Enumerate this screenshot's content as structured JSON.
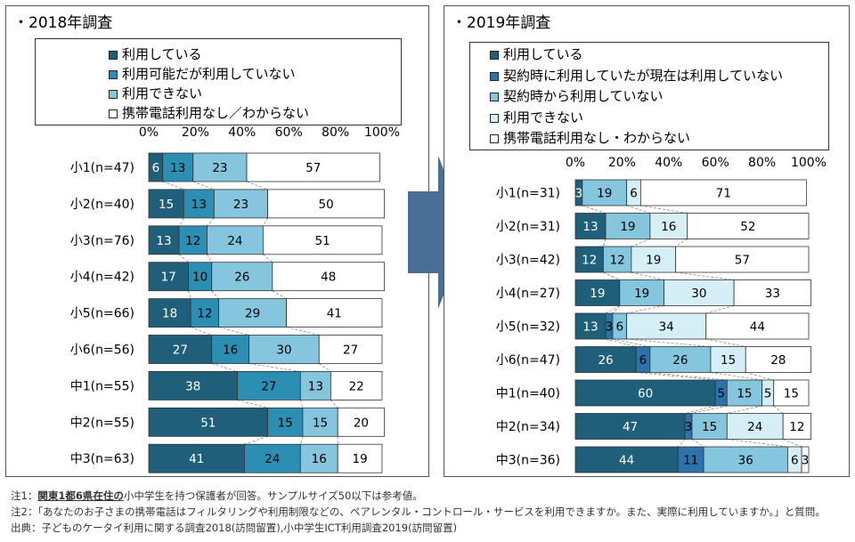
{
  "left": {
    "title": "・2018年調査",
    "legend": [
      {
        "label": "利用している",
        "color": "#1f5f7a"
      },
      {
        "label": "利用可能だが利用していない",
        "color": "#2d8eb3"
      },
      {
        "label": "利用できない",
        "color": "#86c5de"
      },
      {
        "label": "携帯電話利用なし／わからない",
        "color": "#ffffff"
      }
    ]
  },
  "right": {
    "title": "・2019年調査",
    "legend": [
      {
        "label": "利用している",
        "color": "#1f5f7a"
      },
      {
        "label": "契約時に利用していたが現在は利用していない",
        "color": "#2d72a8"
      },
      {
        "label": "契約時から利用していない",
        "color": "#86c5de"
      },
      {
        "label": "利用できない",
        "color": "#d6eef6"
      },
      {
        "label": "携帯電話利用なし・わからない",
        "color": "#ffffff"
      }
    ]
  },
  "chart_data": [
    {
      "type": "bar",
      "orientation": "horizontal",
      "stacked": true,
      "title": "・2018年調査",
      "xlim": [
        0,
        100
      ],
      "xticks": [
        "0%",
        "20%",
        "40%",
        "60%",
        "80%",
        "100%"
      ],
      "categories": [
        "小1(n=47)",
        "小2(n=40)",
        "小3(n=76)",
        "小4(n=42)",
        "小5(n=66)",
        "小6(n=56)",
        "中1(n=55)",
        "中2(n=55)",
        "中3(n=63)"
      ],
      "series": [
        {
          "name": "利用している",
          "color": "#1f5f7a",
          "values": [
            6,
            15,
            13,
            17,
            18,
            27,
            38,
            51,
            41
          ]
        },
        {
          "name": "利用可能だが利用していない",
          "color": "#2d8eb3",
          "values": [
            13,
            13,
            12,
            10,
            12,
            16,
            27,
            15,
            24
          ]
        },
        {
          "name": "利用できない",
          "color": "#86c5de",
          "values": [
            23,
            23,
            24,
            26,
            29,
            30,
            13,
            15,
            16
          ]
        },
        {
          "name": "携帯電話利用なし／わからない",
          "color": "#ffffff",
          "values": [
            57,
            50,
            51,
            48,
            41,
            27,
            22,
            20,
            19
          ]
        }
      ]
    },
    {
      "type": "bar",
      "orientation": "horizontal",
      "stacked": true,
      "title": "・2019年調査",
      "xlim": [
        0,
        100
      ],
      "xticks": [
        "0%",
        "20%",
        "40%",
        "60%",
        "80%",
        "100%"
      ],
      "categories": [
        "小1(n=31)",
        "小2(n=31)",
        "小3(n=42)",
        "小4(n=27)",
        "小5(n=32)",
        "小6(n=47)",
        "中1(n=40)",
        "中2(n=34)",
        "中3(n=36)"
      ],
      "series": [
        {
          "name": "利用している",
          "color": "#1f5f7a",
          "values": [
            3,
            13,
            12,
            19,
            13,
            26,
            60,
            47,
            44
          ]
        },
        {
          "name": "契約時に利用していたが現在は利用していない",
          "color": "#2d72a8",
          "values": [
            0,
            0,
            0,
            0,
            3,
            6,
            5,
            3,
            11
          ]
        },
        {
          "name": "契約時から利用していない",
          "color": "#86c5de",
          "values": [
            19,
            19,
            12,
            19,
            6,
            26,
            15,
            15,
            36
          ]
        },
        {
          "name": "利用できない",
          "color": "#d6eef6",
          "values": [
            6,
            16,
            19,
            30,
            34,
            15,
            5,
            24,
            6
          ]
        },
        {
          "name": "携帯電話利用なし・わからない",
          "color": "#ffffff",
          "values": [
            71,
            52,
            57,
            33,
            44,
            28,
            15,
            12,
            3
          ]
        }
      ]
    }
  ],
  "notes": {
    "note1_prefix": "注1：",
    "note1_emph": "関東1都6県在住の",
    "note1_rest": "小中学生を持つ保護者が回答。サンプルサイズ50以下は参考値。",
    "note2": "注2：「あなたのお子さまの携帯電話はフィルタリングや利用制限などの、ペアレンタル・コントロール・サービスを利用できますか。また、実際に利用していますか。」と質問。",
    "source": "出典：子どものケータイ利用に関する調査2018(訪問留置),小中学生ICT利用調査2019(訪問留置)"
  }
}
